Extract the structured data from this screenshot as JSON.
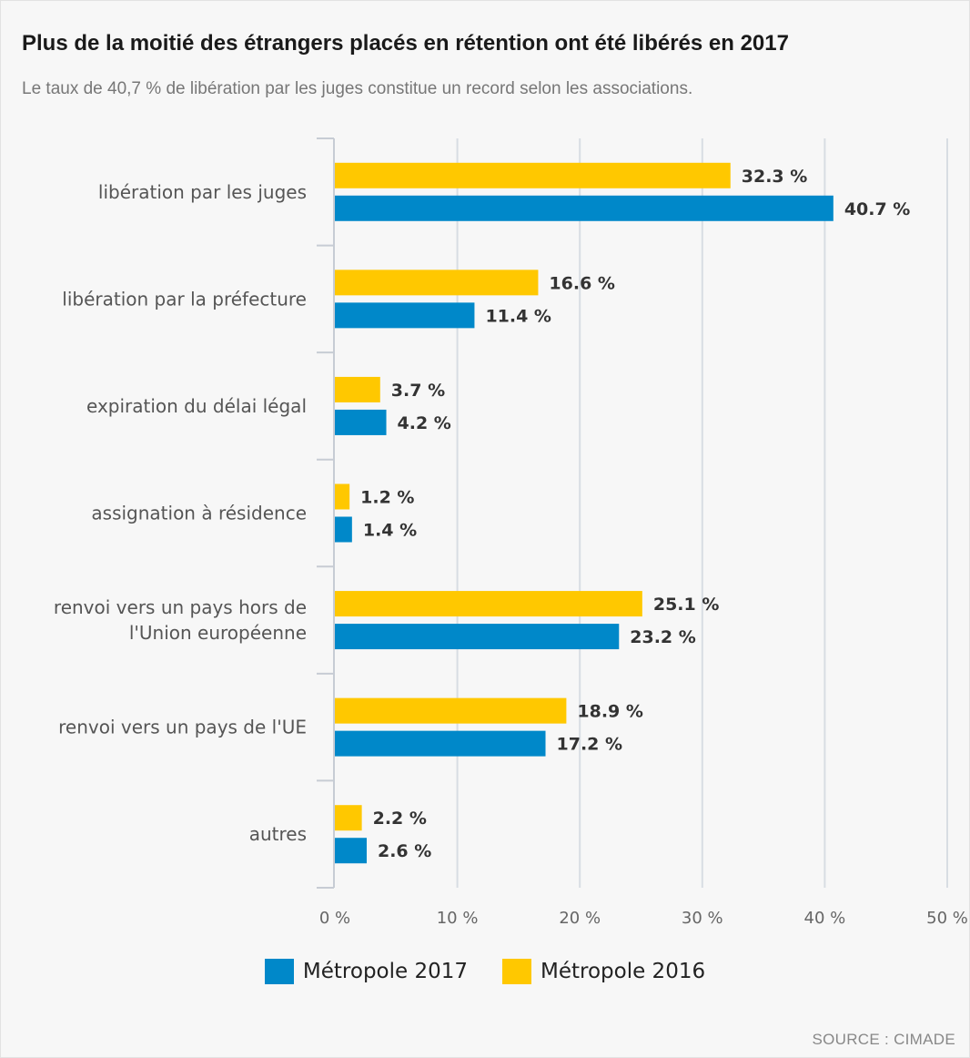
{
  "header": {
    "title": "Plus de la moitié des étrangers placés en rétention ont été libérés en 2017",
    "subtitle": "Le taux de 40,7 % de libération par les juges constitue un record selon les associations."
  },
  "source": "SOURCE : CIMADE",
  "colors": {
    "series_2016": "#ffc800",
    "series_2017": "#0088c9",
    "grid": "#d8dde3",
    "axis": "#c7ccd4"
  },
  "chart_data": {
    "type": "bar",
    "orientation": "horizontal",
    "title": "Plus de la moitié des étrangers placés en rétention ont été libérés en 2017",
    "subtitle": "Le taux de 40,7 % de libération par les juges constitue un record selon les associations.",
    "categories": [
      [
        "libération par les juges"
      ],
      [
        "libération par la préfecture"
      ],
      [
        "expiration du délai légal"
      ],
      [
        "assignation à résidence"
      ],
      [
        "renvoi vers un pays hors de",
        "l'Union européenne"
      ],
      [
        "renvoi vers un pays de l'UE"
      ],
      [
        "autres"
      ]
    ],
    "series": [
      {
        "name": "Métropole 2016",
        "color": "#ffc800",
        "values": [
          32.3,
          16.6,
          3.7,
          1.2,
          25.1,
          18.9,
          2.2
        ],
        "labels": [
          "32.3 %",
          "16.6 %",
          "3.7 %",
          "1.2 %",
          "25.1 %",
          "18.9 %",
          "2.2 %"
        ]
      },
      {
        "name": "Métropole 2017",
        "color": "#0088c9",
        "values": [
          40.7,
          11.4,
          4.2,
          1.4,
          23.2,
          17.2,
          2.6
        ],
        "labels": [
          "40.7 %",
          "11.4 %",
          "4.2 %",
          "1.4 %",
          "23.2 %",
          "17.2 %",
          "2.6 %"
        ]
      }
    ],
    "xlim": [
      0,
      50
    ],
    "ticks": [
      0,
      10,
      20,
      30,
      40,
      50
    ],
    "tick_labels": [
      "0 %",
      "10 %",
      "20 %",
      "30 %",
      "40 %",
      "50 %"
    ],
    "legend": [
      {
        "name": "Métropole 2017",
        "color": "#0088c9"
      },
      {
        "name": "Métropole 2016",
        "color": "#ffc800"
      }
    ],
    "legend_position": "bottom-center",
    "grid": true
  }
}
